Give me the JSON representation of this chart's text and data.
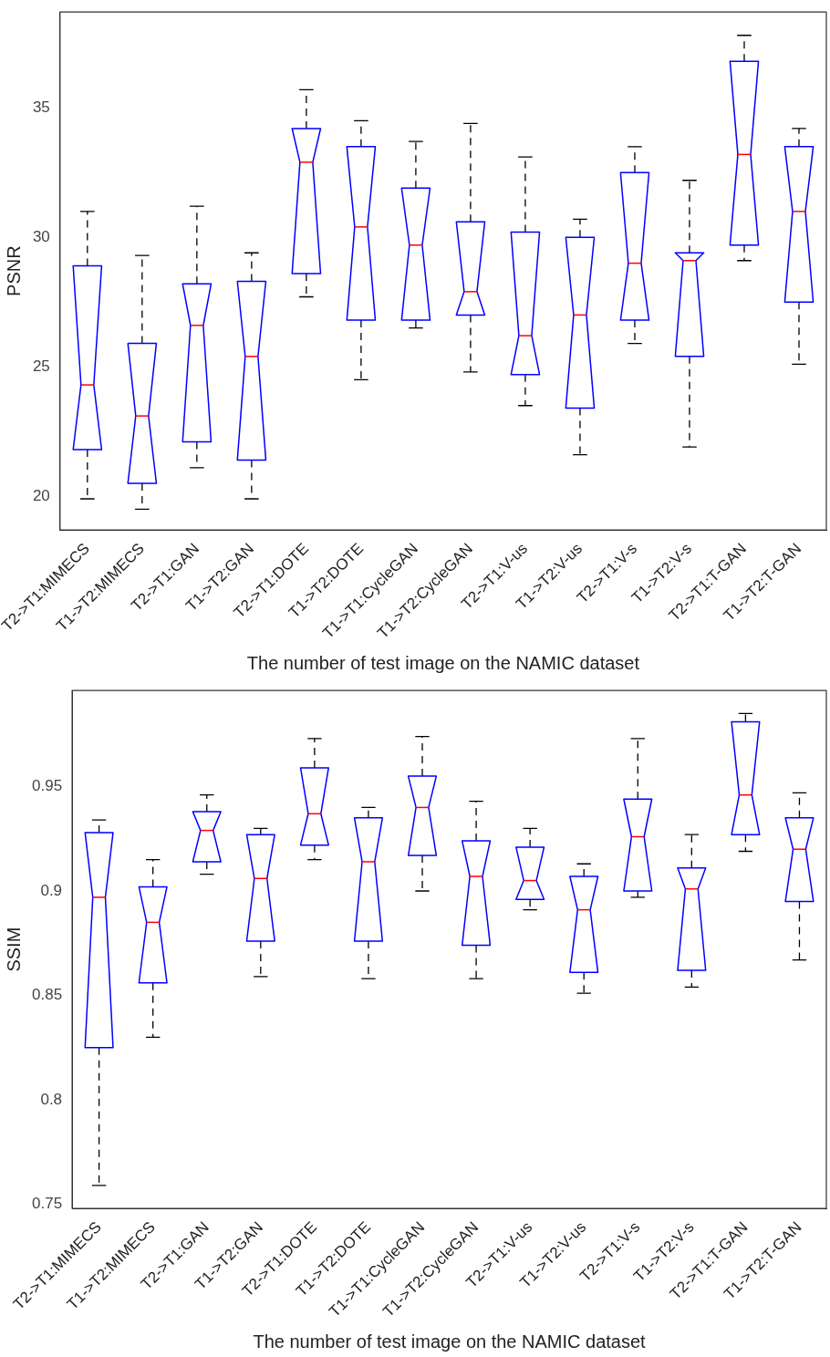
{
  "chart_data": [
    {
      "type": "box",
      "categories": [
        "T2->T1:MIMECS",
        "T1->T2:MIMECS",
        "T2->T1:GAN",
        "T1->T2:GAN",
        "T2->T1:DOTE",
        "T1->T2:DOTE",
        "T1->T1:CycleGAN",
        "T1->T2:CycleGAN",
        "T2->T1:V-us",
        "T1->T2:V-us",
        "T2->T1:V-s",
        "T1->T2:V-s",
        "T2->T1:T-GAN",
        "T1->T2:T-GAN"
      ],
      "boxes": [
        {
          "low": 19.9,
          "q1": 21.8,
          "median": 24.3,
          "q3": 28.9,
          "high": 31.0
        },
        {
          "low": 19.5,
          "q1": 20.5,
          "median": 23.1,
          "q3": 25.9,
          "high": 29.3
        },
        {
          "low": 21.1,
          "q1": 22.1,
          "median": 26.6,
          "q3": 28.2,
          "high": 31.2
        },
        {
          "low": 19.9,
          "q1": 21.4,
          "median": 25.4,
          "q3": 28.3,
          "high": 29.4
        },
        {
          "low": 27.7,
          "q1": 28.6,
          "median": 32.9,
          "q3": 34.2,
          "high": 35.7
        },
        {
          "low": 24.5,
          "q1": 26.8,
          "median": 30.4,
          "q3": 33.5,
          "high": 34.5
        },
        {
          "low": 26.5,
          "q1": 26.8,
          "median": 29.7,
          "q3": 31.9,
          "high": 33.7
        },
        {
          "low": 24.8,
          "q1": 27.0,
          "median": 27.9,
          "q3": 30.6,
          "high": 34.4
        },
        {
          "low": 23.5,
          "q1": 24.7,
          "median": 26.2,
          "q3": 30.2,
          "high": 33.1
        },
        {
          "low": 21.6,
          "q1": 23.4,
          "median": 27.0,
          "q3": 30.0,
          "high": 30.7
        },
        {
          "low": 25.9,
          "q1": 26.8,
          "median": 29.0,
          "q3": 32.5,
          "high": 33.5
        },
        {
          "low": 21.9,
          "q1": 25.4,
          "median": 29.1,
          "q3": 29.4,
          "high": 32.2
        },
        {
          "low": 29.1,
          "q1": 29.7,
          "median": 33.2,
          "q3": 36.8,
          "high": 37.8
        },
        {
          "low": 25.1,
          "q1": 27.5,
          "median": 31.0,
          "q3": 33.5,
          "high": 34.2
        }
      ],
      "color": "#0000ff",
      "xlabel": "The number of test image on the NAMIC dataset",
      "ylabel": "PSNR",
      "ylim": [
        18.7,
        38.7
      ],
      "yticks": [
        20,
        25,
        30,
        35
      ],
      "grid": false,
      "legend": false
    },
    {
      "type": "box",
      "categories": [
        "T2->T1:MIMECS",
        "T1->T2:MIMECS",
        "T2->T1:GAN",
        "T1->T2:GAN",
        "T2->T1:DOTE",
        "T1->T2:DOTE",
        "T1->T1:CycleGAN",
        "T1->T2:CycleGAN",
        "T2->T1:V-us",
        "T1->T2:V-us",
        "T2->T1:V-s",
        "T1->T2:V-s",
        "T2->T1:T-GAN",
        "T1->T2:T-GAN"
      ],
      "boxes": [
        {
          "low": 0.759,
          "q1": 0.825,
          "median": 0.897,
          "q3": 0.928,
          "high": 0.934
        },
        {
          "low": 0.83,
          "q1": 0.856,
          "median": 0.885,
          "q3": 0.902,
          "high": 0.915
        },
        {
          "low": 0.908,
          "q1": 0.914,
          "median": 0.929,
          "q3": 0.938,
          "high": 0.946
        },
        {
          "low": 0.859,
          "q1": 0.876,
          "median": 0.906,
          "q3": 0.927,
          "high": 0.93
        },
        {
          "low": 0.915,
          "q1": 0.922,
          "median": 0.937,
          "q3": 0.959,
          "high": 0.973
        },
        {
          "low": 0.858,
          "q1": 0.876,
          "median": 0.914,
          "q3": 0.935,
          "high": 0.94
        },
        {
          "low": 0.9,
          "q1": 0.917,
          "median": 0.94,
          "q3": 0.955,
          "high": 0.974
        },
        {
          "low": 0.858,
          "q1": 0.874,
          "median": 0.907,
          "q3": 0.924,
          "high": 0.943
        },
        {
          "low": 0.891,
          "q1": 0.896,
          "median": 0.905,
          "q3": 0.921,
          "high": 0.93
        },
        {
          "low": 0.851,
          "q1": 0.861,
          "median": 0.891,
          "q3": 0.907,
          "high": 0.913
        },
        {
          "low": 0.897,
          "q1": 0.9,
          "median": 0.926,
          "q3": 0.944,
          "high": 0.973
        },
        {
          "low": 0.854,
          "q1": 0.862,
          "median": 0.901,
          "q3": 0.911,
          "high": 0.927
        },
        {
          "low": 0.919,
          "q1": 0.927,
          "median": 0.946,
          "q3": 0.981,
          "high": 0.985
        },
        {
          "low": 0.867,
          "q1": 0.895,
          "median": 0.92,
          "q3": 0.935,
          "high": 0.947
        }
      ],
      "color": "#0000ff",
      "xlabel": "The number of test image on the NAMIC dataset",
      "ylabel": "SSIM",
      "ylim": [
        0.748,
        0.996
      ],
      "yticks": [
        0.75,
        0.8,
        0.85,
        0.9,
        0.95
      ],
      "grid": false,
      "legend": false
    }
  ]
}
